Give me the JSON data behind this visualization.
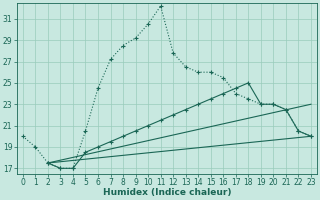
{
  "xlabel": "Humidex (Indice chaleur)",
  "bg_color": "#c8e8e0",
  "grid_color": "#99ccbb",
  "line_color": "#1a6655",
  "xlim": [
    -0.5,
    23.5
  ],
  "ylim": [
    16.5,
    32.5
  ],
  "xticks": [
    0,
    1,
    2,
    3,
    4,
    5,
    6,
    7,
    8,
    9,
    10,
    11,
    12,
    13,
    14,
    15,
    16,
    17,
    18,
    19,
    20,
    21,
    22,
    23
  ],
  "yticks": [
    17,
    19,
    21,
    23,
    25,
    27,
    29,
    31
  ],
  "curve1_x": [
    0,
    1,
    2,
    3,
    4,
    5,
    6,
    7,
    8,
    9,
    10,
    11,
    12,
    13,
    14,
    15,
    16,
    17,
    18,
    19,
    20,
    21,
    22,
    23
  ],
  "curve1_y": [
    20.0,
    19.0,
    17.5,
    17.0,
    17.0,
    20.5,
    24.5,
    27.2,
    28.5,
    29.2,
    30.5,
    32.2,
    27.8,
    26.5,
    26.0,
    26.0,
    25.5,
    24.0,
    23.5,
    23.0,
    23.0,
    22.5,
    20.5,
    20.0
  ],
  "curve2_x": [
    2,
    3,
    4,
    5,
    6,
    7,
    8,
    9,
    10,
    11,
    12,
    13,
    14,
    15,
    16,
    17,
    18,
    19,
    20,
    21,
    22,
    23
  ],
  "curve2_y": [
    17.5,
    17.0,
    17.0,
    18.5,
    19.0,
    19.5,
    20.0,
    20.5,
    21.0,
    21.5,
    22.0,
    22.5,
    23.0,
    23.5,
    24.0,
    24.5,
    25.0,
    23.0,
    23.0,
    22.5,
    20.5,
    20.0
  ],
  "line1_x": [
    2,
    23
  ],
  "line1_y": [
    17.5,
    20.0
  ],
  "line2_x": [
    2,
    23
  ],
  "line2_y": [
    17.5,
    23.0
  ],
  "tick_fontsize": 5.5,
  "xlabel_fontsize": 6.5
}
